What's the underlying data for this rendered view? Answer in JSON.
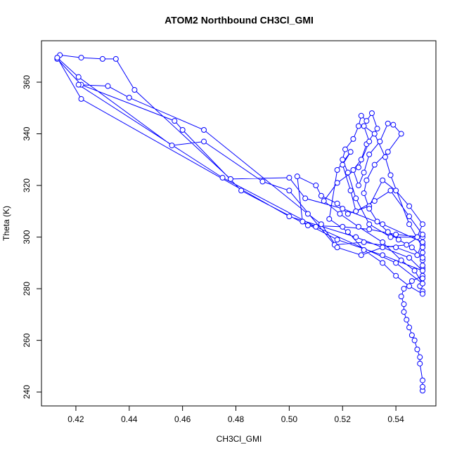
{
  "chart_data": {
    "type": "line",
    "title": "ATOM2 Northbound CH3Cl_GMI",
    "xlabel": "CH3Cl_GMI",
    "ylabel": "Theta (K)",
    "marker": "circle",
    "color": "#0000ff",
    "xlim": [
      0.4071,
      0.555
    ],
    "ylim": [
      234.6,
      376.05
    ],
    "xticks": [
      0.42,
      0.44,
      0.46,
      0.48,
      {
        "value": 0.5,
        "label": "0.50"
      },
      0.52,
      0.54
    ],
    "yticks": [
      240,
      260,
      280,
      300,
      320,
      340,
      360
    ],
    "x": [
      0.55,
      0.55,
      0.55,
      0.549,
      0.549,
      0.548,
      0.547,
      0.546,
      0.545,
      0.544,
      0.543,
      0.543,
      0.542,
      0.543,
      0.546,
      0.55,
      0.55,
      0.55,
      0.55,
      0.55,
      0.55,
      0.54,
      0.53,
      0.52,
      0.507,
      0.482,
      0.46,
      0.457,
      0.422,
      0.413,
      0.414,
      0.422,
      0.43,
      0.435,
      0.442,
      0.478,
      0.5,
      0.506,
      0.52,
      0.535,
      0.55,
      0.548,
      0.54,
      0.528,
      0.517,
      0.5,
      0.49,
      0.468,
      0.456,
      0.421,
      0.413,
      0.422,
      0.5,
      0.525,
      0.545,
      0.55,
      0.535,
      0.518,
      0.505,
      0.503,
      0.51,
      0.512,
      0.518,
      0.522,
      0.53,
      0.535,
      0.54,
      0.545,
      0.55,
      0.548,
      0.538,
      0.53,
      0.525,
      0.522,
      0.52,
      0.521,
      0.524,
      0.526,
      0.527,
      0.529,
      0.531,
      0.533,
      0.529,
      0.527,
      0.524,
      0.526,
      0.528,
      0.53,
      0.534,
      0.537,
      0.539,
      0.542,
      0.537,
      0.532,
      0.529,
      0.528,
      0.53,
      0.533,
      0.537,
      0.541,
      0.546,
      0.55,
      0.55,
      0.55,
      0.549,
      0.55,
      0.55,
      0.545,
      0.54,
      0.535,
      0.528,
      0.522,
      0.515,
      0.518,
      0.523,
      0.52,
      0.523,
      0.525,
      0.532,
      0.538,
      0.545,
      0.55,
      0.544,
      0.535,
      0.527,
      0.518,
      0.512,
      0.507,
      0.468,
      0.44,
      0.432,
      0.421,
      0.475,
      0.51,
      0.54,
      0.55,
      0.547,
      0.542,
      0.535,
      0.526,
      0.519,
      0.513,
      0.518,
      0.526,
      0.53,
      0.528,
      0.532,
      0.536,
      0.538,
      0.545,
      0.55
    ],
    "series": [
      {
        "color": "#0000ff",
        "values": [
          240.5,
          242,
          244.5,
          251,
          253.5,
          256.5,
          260,
          262,
          265,
          268,
          271,
          274,
          277,
          280,
          283,
          285,
          288,
          291,
          294,
          297,
          300,
          301,
          303,
          304,
          304.5,
          318,
          341.5,
          345,
          359,
          369,
          370.5,
          369.5,
          369,
          369,
          357,
          322.5,
          323,
          315,
          311,
          305,
          298,
          293,
          296,
          298,
          297,
          318,
          321.5,
          337,
          335.5,
          362,
          369.5,
          353.5,
          308,
          300,
          292,
          287,
          293,
          299,
          306,
          323.5,
          320,
          316,
          313,
          309,
          312,
          322,
          318,
          312,
          305,
          300,
          300,
          305,
          315,
          325,
          330,
          334,
          338,
          343,
          347,
          345,
          348,
          342,
          336,
          330,
          326,
          320,
          325,
          332,
          337,
          344,
          343.5,
          340,
          333,
          328,
          322,
          317,
          311,
          306,
          302,
          299,
          296,
          292,
          289,
          284,
          281,
          279,
          278,
          281,
          285,
          290,
          295,
          302,
          307,
          326,
          333,
          328,
          318,
          310,
          314,
          318,
          308,
          301,
          297,
          296,
          293,
          296,
          305,
          309,
          341.5,
          354,
          358.5,
          359,
          323,
          304,
          290,
          282,
          287,
          291,
          298,
          304,
          309,
          314,
          321,
          327,
          337,
          343,
          340,
          331,
          324,
          305,
          296
        ]
      }
    ]
  }
}
